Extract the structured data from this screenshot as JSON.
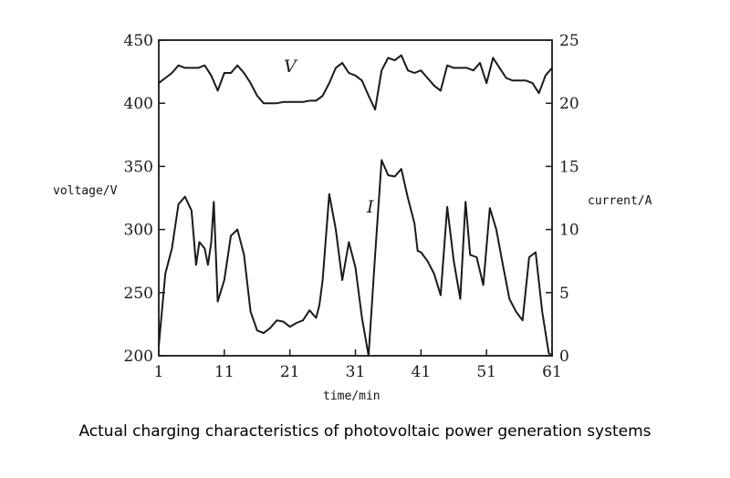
{
  "caption": "Actual charging characteristics of photovoltaic power generation systems",
  "chart_data": {
    "type": "line",
    "title": "",
    "xlabel": "time/min",
    "ylabel_left": "voltage/V",
    "ylabel_right": "current/A",
    "xlim": [
      1,
      61
    ],
    "ylim_left": [
      200,
      450
    ],
    "ylim_right": [
      0,
      25
    ],
    "x_ticks": [
      1,
      11,
      21,
      31,
      41,
      51,
      61
    ],
    "y_left_ticks": [
      200,
      250,
      300,
      350,
      400,
      450
    ],
    "y_right_ticks": [
      0,
      5,
      10,
      15,
      20,
      25
    ],
    "grid": false,
    "legend": "none",
    "line_color": "#1a1a1a",
    "series": [
      {
        "name": "V",
        "axis": "left",
        "x": [
          1,
          2,
          3,
          4,
          5,
          6,
          7,
          8,
          9,
          10,
          11,
          12,
          13,
          14,
          15,
          16,
          17,
          18,
          19,
          20,
          21,
          22,
          23,
          24,
          25,
          26,
          27,
          28,
          29,
          30,
          31,
          32,
          33,
          34,
          35,
          36,
          37,
          38,
          39,
          40,
          41,
          42,
          43,
          44,
          45,
          46,
          47,
          48,
          49,
          50,
          51,
          52,
          53,
          54,
          55,
          56,
          57,
          58,
          59,
          60,
          61
        ],
        "values": [
          416,
          420,
          424,
          430,
          428,
          428,
          428,
          430,
          422,
          410,
          424,
          424,
          430,
          424,
          416,
          406,
          400,
          400,
          400,
          401,
          401,
          401,
          401,
          402,
          402,
          406,
          416,
          428,
          432,
          424,
          422,
          418,
          406,
          395,
          426,
          436,
          434,
          438,
          426,
          424,
          426,
          420,
          414,
          410,
          430,
          428,
          428,
          428,
          426,
          432,
          416,
          436,
          428,
          420,
          418,
          418,
          418,
          416,
          408,
          422,
          428
        ]
      },
      {
        "name": "I",
        "axis": "right",
        "x": [
          1,
          2,
          3,
          4,
          5,
          6,
          6.7,
          7.2,
          8,
          8.5,
          9,
          9.4,
          10,
          11,
          12,
          13,
          14,
          15,
          16,
          17,
          18,
          19,
          20,
          21,
          22,
          23,
          24,
          25,
          25.5,
          26,
          27,
          28,
          29,
          30,
          31,
          32,
          33,
          34,
          35,
          36,
          37,
          38,
          39,
          40,
          40.5,
          41,
          42,
          43,
          44,
          45,
          46,
          47,
          47.8,
          48.5,
          49.5,
          50.5,
          51.5,
          52.5,
          53.5,
          54.5,
          55.5,
          56.5,
          57.5,
          58.5,
          59.5,
          60.5,
          61
        ],
        "values": [
          0.8,
          6.5,
          8.5,
          12,
          12.6,
          11.5,
          7.2,
          9,
          8.5,
          7.2,
          9,
          12.2,
          4.3,
          6,
          9.5,
          10,
          8,
          3.5,
          2,
          1.8,
          2.2,
          2.8,
          2.7,
          2.3,
          2.6,
          2.8,
          3.6,
          3,
          4,
          6,
          12.8,
          10,
          6,
          9,
          7,
          3,
          0,
          8,
          15.5,
          14.3,
          14.2,
          14.8,
          12.5,
          10.5,
          8.3,
          8.2,
          7.5,
          6.5,
          4.8,
          11.8,
          7.5,
          4.5,
          12.2,
          8,
          7.8,
          5.6,
          11.7,
          10,
          7.2,
          4.5,
          3.5,
          2.8,
          7.8,
          8.2,
          3.5,
          0.2,
          0
        ]
      }
    ]
  }
}
